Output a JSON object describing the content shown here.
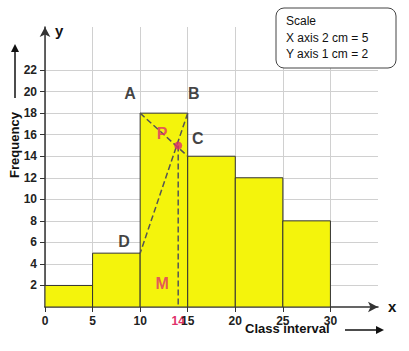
{
  "chart_data": {
    "type": "histogram",
    "bins": [
      0,
      5,
      10,
      15,
      20,
      25,
      30
    ],
    "values": [
      2,
      5,
      18,
      14,
      12,
      8
    ],
    "color": "#f4f40c",
    "xlim": [
      0,
      35
    ],
    "ylim": [
      0,
      26
    ],
    "xticks": [
      0,
      5,
      10,
      15,
      20,
      25,
      30
    ],
    "yticks": [
      2,
      4,
      6,
      8,
      10,
      12,
      14,
      16,
      18,
      20,
      22
    ],
    "grid": true,
    "x_label": "Class interval",
    "y_label": "Frequency",
    "x_axis_name": "x",
    "y_axis_name": "y",
    "scale_box": {
      "title": "Scale",
      "lines": [
        "X axis 2 cm = 5",
        "Y axis 1 cm = 2"
      ]
    },
    "points": [
      {
        "label": "A",
        "x": 10,
        "y": 18
      },
      {
        "label": "B",
        "x": 15,
        "y": 18
      },
      {
        "label": "C",
        "x": 15,
        "y": 14
      },
      {
        "label": "D",
        "x": 10,
        "y": 5
      },
      {
        "label": "P",
        "x": 14,
        "y": 15,
        "color": "#e0306a",
        "marker": "circle"
      },
      {
        "label": "M",
        "x": 14,
        "y": 0,
        "color": "#e0306a"
      }
    ],
    "lines": [
      {
        "from": "A",
        "to": "C",
        "line_style": "dashed"
      },
      {
        "from": "B",
        "to": "D",
        "line_style": "dashed"
      },
      {
        "from": "P",
        "to": "M",
        "line_style": "dashed"
      }
    ],
    "annotations": [
      {
        "text": "14",
        "x": 14,
        "y": 0,
        "color": "#e0306a"
      }
    ]
  }
}
